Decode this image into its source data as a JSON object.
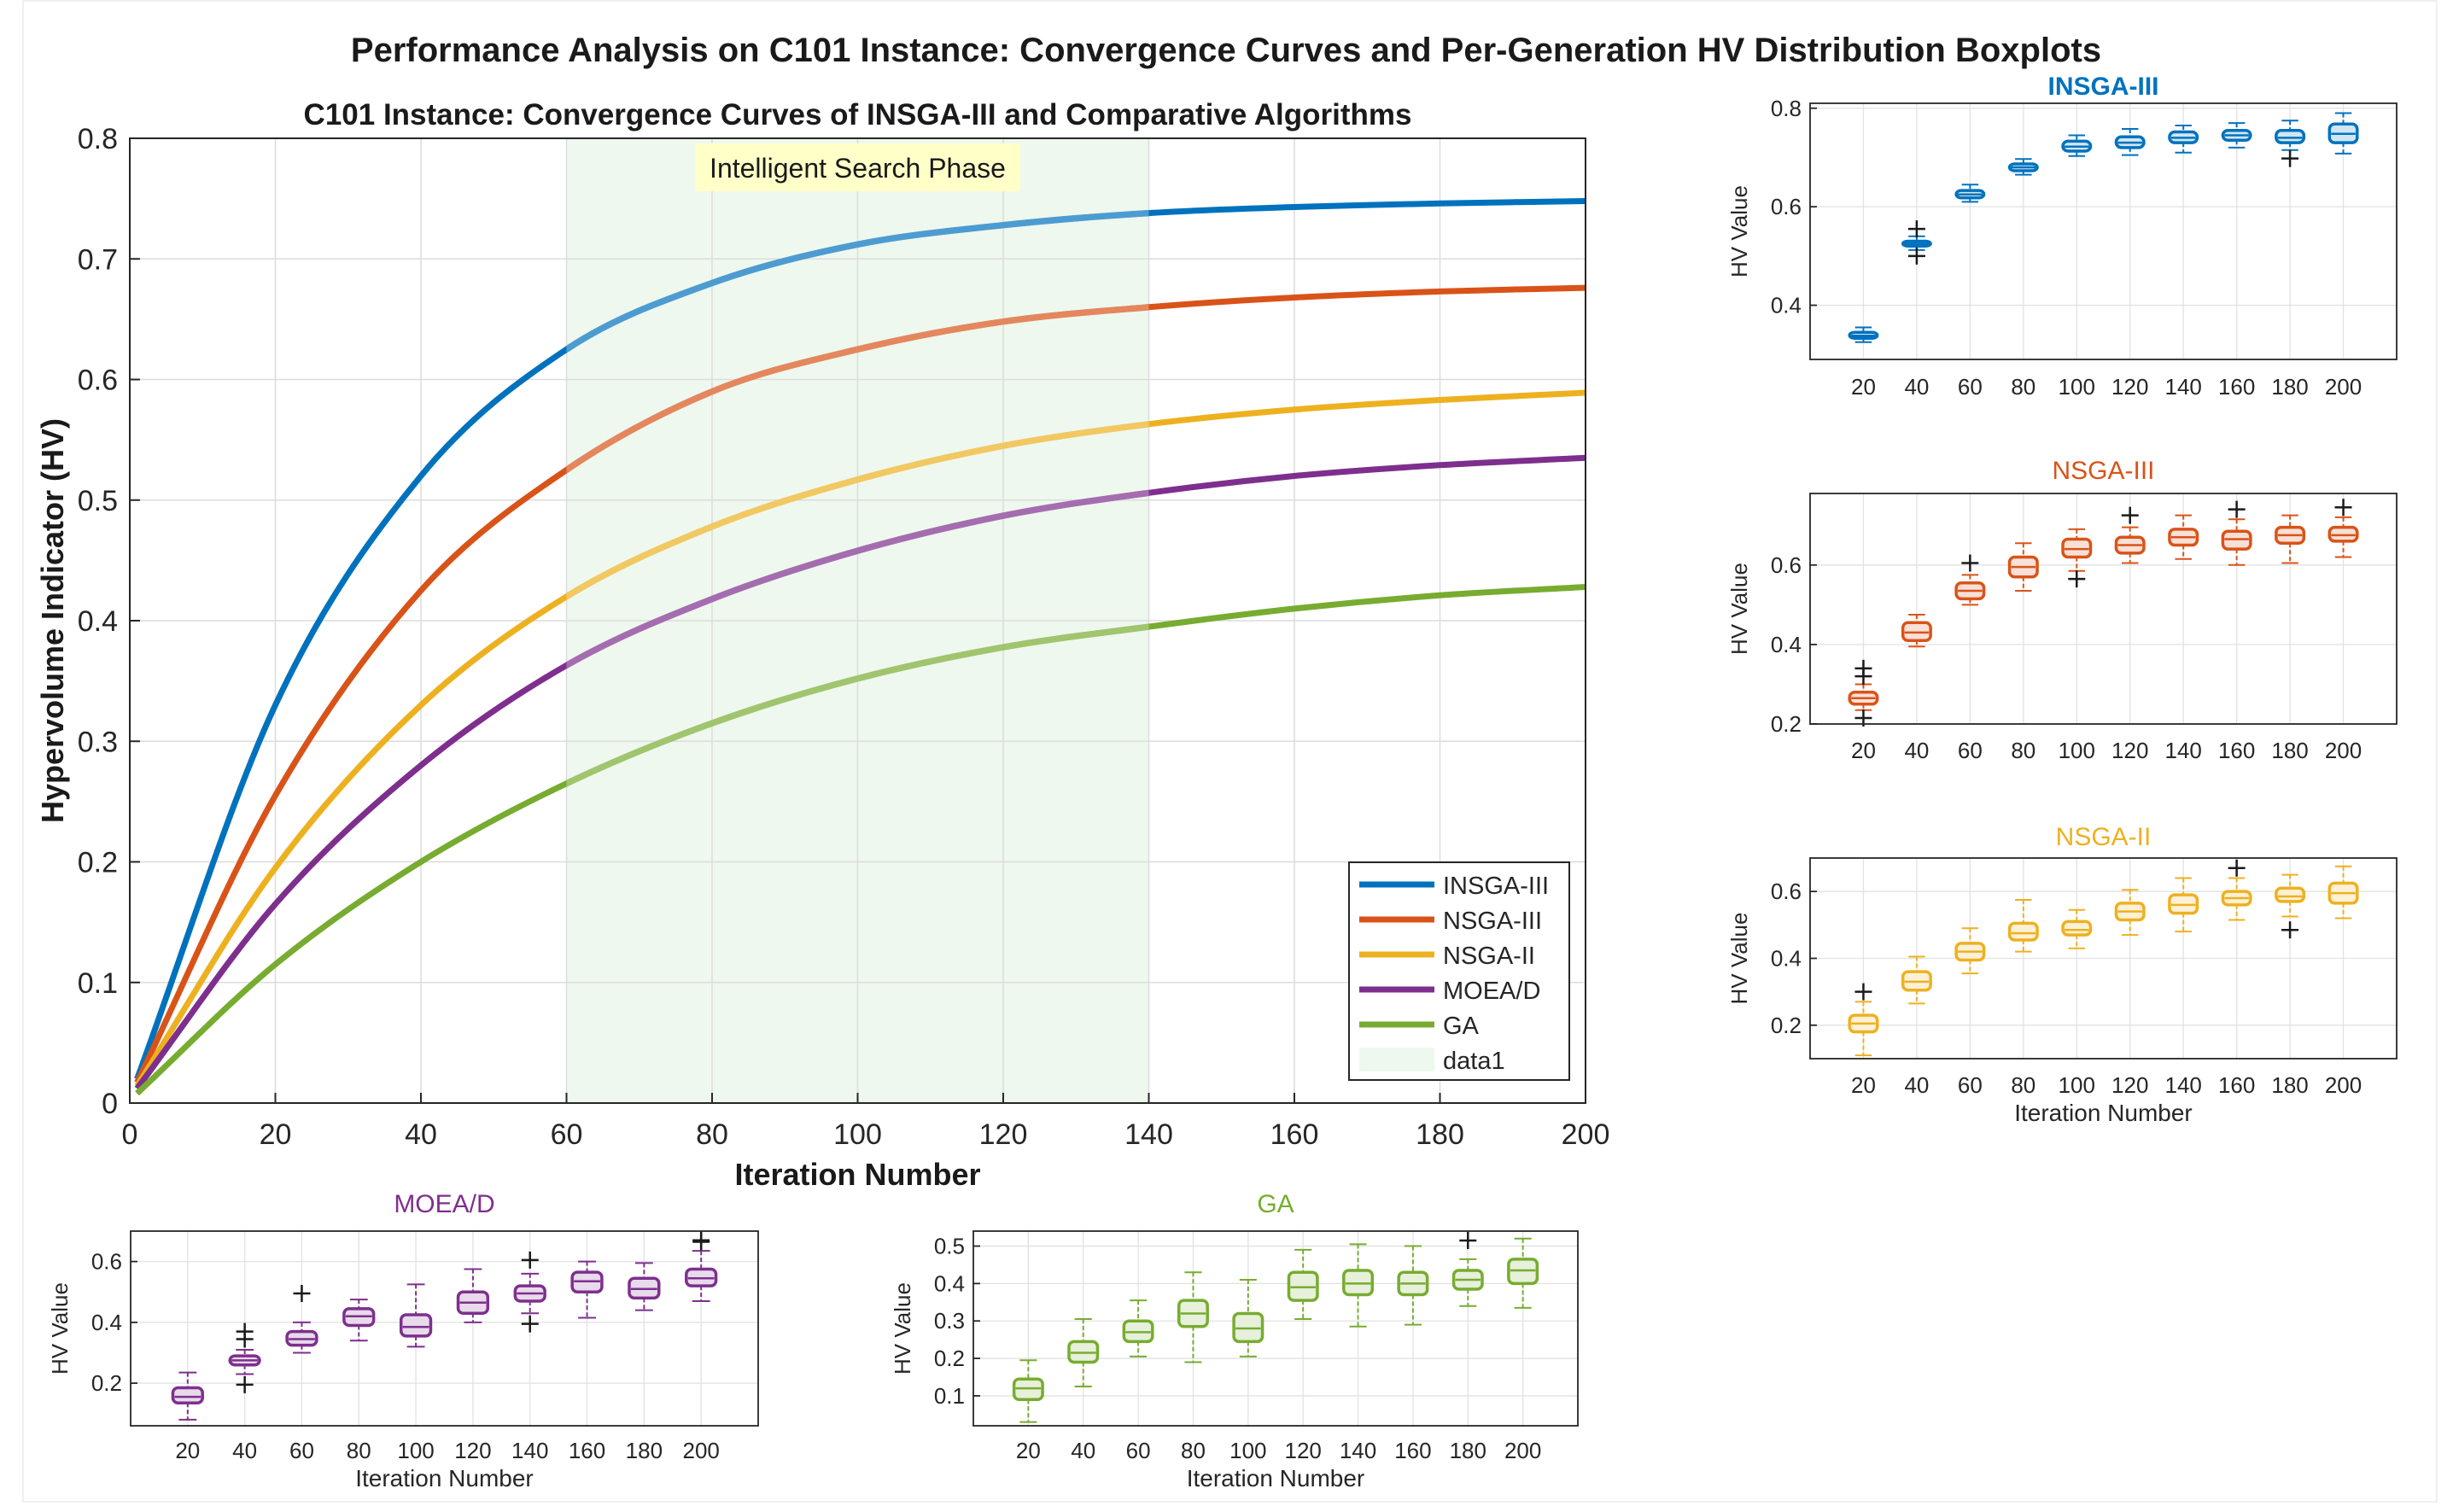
{
  "figure_title": "Performance Analysis on C101 Instance: Convergence Curves and Per-Generation HV Distribution Boxplots",
  "colors": {
    "insga3": "#0072BD",
    "nsga3": "#D95319",
    "nsga2": "#EDB120",
    "moead": "#7E2F8E",
    "ga": "#77AC30",
    "phase_fill": "#EEF8EE",
    "annotation_bg": "#FFFFC8"
  },
  "chart_data": [
    {
      "id": "main",
      "type": "line",
      "title": "C101 Instance: Convergence Curves of INSGA-III and Comparative Algorithms",
      "xlabel": "Iteration Number",
      "ylabel": "Hypervolume Indicator (HV)",
      "xlim": [
        0,
        200
      ],
      "ylim": [
        0,
        0.8
      ],
      "xticks": [
        0,
        20,
        40,
        60,
        80,
        100,
        120,
        140,
        160,
        180,
        200
      ],
      "yticks": [
        0,
        0.1,
        0.2,
        0.3,
        0.4,
        0.5,
        0.6,
        0.7,
        0.8
      ],
      "grid": true,
      "legend_location": "bottom-right",
      "shaded_region": {
        "x_start": 60,
        "x_end": 140,
        "label": "Intelligent Search Phase",
        "legend_name": "data1"
      },
      "series": [
        {
          "name": "INSGA-III",
          "color_key": "insga3",
          "x": [
            1,
            20,
            40,
            60,
            80,
            100,
            120,
            140,
            160,
            180,
            200
          ],
          "values": [
            0.02,
            0.33,
            0.52,
            0.625,
            0.68,
            0.712,
            0.728,
            0.738,
            0.743,
            0.746,
            0.748
          ]
        },
        {
          "name": "NSGA-III",
          "color_key": "nsga3",
          "x": [
            1,
            20,
            40,
            60,
            80,
            100,
            120,
            140,
            160,
            180,
            200
          ],
          "values": [
            0.017,
            0.255,
            0.425,
            0.525,
            0.59,
            0.625,
            0.648,
            0.66,
            0.668,
            0.673,
            0.676
          ]
        },
        {
          "name": "NSGA-II",
          "color_key": "nsga2",
          "x": [
            1,
            20,
            40,
            60,
            80,
            100,
            120,
            140,
            160,
            180,
            200
          ],
          "values": [
            0.014,
            0.195,
            0.33,
            0.42,
            0.478,
            0.517,
            0.545,
            0.563,
            0.575,
            0.583,
            0.589
          ]
        },
        {
          "name": "MOEA/D",
          "color_key": "moead",
          "x": [
            1,
            20,
            40,
            60,
            80,
            100,
            120,
            140,
            160,
            180,
            200
          ],
          "values": [
            0.012,
            0.165,
            0.28,
            0.363,
            0.418,
            0.458,
            0.487,
            0.506,
            0.52,
            0.529,
            0.535
          ]
        },
        {
          "name": "GA",
          "color_key": "ga",
          "x": [
            1,
            20,
            40,
            60,
            80,
            100,
            120,
            140,
            160,
            180,
            200
          ],
          "values": [
            0.008,
            0.115,
            0.2,
            0.265,
            0.315,
            0.352,
            0.378,
            0.395,
            0.41,
            0.421,
            0.428
          ]
        }
      ]
    },
    {
      "id": "insga3",
      "type": "boxplot",
      "title": "INSGA-III",
      "color_key": "insga3",
      "xlabel": "",
      "ylabel": "HV Value",
      "categories": [
        "20",
        "40",
        "60",
        "80",
        "100",
        "120",
        "140",
        "160",
        "180",
        "200"
      ],
      "ylim": [
        0.29,
        0.81
      ],
      "yticks": [
        0.4,
        0.6,
        0.8
      ],
      "ytick_labels": [
        "0.4",
        "0.6",
        "0.8"
      ],
      "boxes": [
        {
          "min": 0.325,
          "q1": 0.333,
          "median": 0.338,
          "q3": 0.345,
          "max": 0.355,
          "outliers": []
        },
        {
          "min": 0.512,
          "q1": 0.52,
          "median": 0.525,
          "q3": 0.53,
          "max": 0.54,
          "outliers": [
            0.5,
            0.555
          ]
        },
        {
          "min": 0.61,
          "q1": 0.618,
          "median": 0.625,
          "q3": 0.633,
          "max": 0.645,
          "outliers": []
        },
        {
          "min": 0.665,
          "q1": 0.673,
          "median": 0.68,
          "q3": 0.687,
          "max": 0.697,
          "outliers": []
        },
        {
          "min": 0.703,
          "q1": 0.713,
          "median": 0.722,
          "q3": 0.733,
          "max": 0.745,
          "outliers": []
        },
        {
          "min": 0.705,
          "q1": 0.72,
          "median": 0.73,
          "q3": 0.742,
          "max": 0.758,
          "outliers": []
        },
        {
          "min": 0.71,
          "q1": 0.73,
          "median": 0.74,
          "q3": 0.752,
          "max": 0.765,
          "outliers": []
        },
        {
          "min": 0.72,
          "q1": 0.735,
          "median": 0.745,
          "q3": 0.755,
          "max": 0.77,
          "outliers": []
        },
        {
          "min": 0.715,
          "q1": 0.73,
          "median": 0.74,
          "q3": 0.755,
          "max": 0.775,
          "outliers": [
            0.698
          ]
        },
        {
          "min": 0.708,
          "q1": 0.73,
          "median": 0.748,
          "q3": 0.768,
          "max": 0.79,
          "outliers": []
        }
      ]
    },
    {
      "id": "nsga3",
      "type": "boxplot",
      "title": "NSGA-III",
      "color_key": "nsga3",
      "xlabel": "",
      "ylabel": "HV Value",
      "categories": [
        "20",
        "40",
        "60",
        "80",
        "100",
        "120",
        "140",
        "160",
        "180",
        "200"
      ],
      "ylim": [
        0.2,
        0.78
      ],
      "yticks": [
        0.2,
        0.4,
        0.6
      ],
      "ytick_labels": [
        "0.2",
        "0.4",
        "0.6"
      ],
      "boxes": [
        {
          "min": 0.235,
          "q1": 0.25,
          "median": 0.265,
          "q3": 0.28,
          "max": 0.3,
          "outliers": [
            0.215,
            0.32,
            0.34
          ]
        },
        {
          "min": 0.395,
          "q1": 0.41,
          "median": 0.43,
          "q3": 0.455,
          "max": 0.475,
          "outliers": []
        },
        {
          "min": 0.5,
          "q1": 0.515,
          "median": 0.535,
          "q3": 0.555,
          "max": 0.575,
          "outliers": [
            0.605
          ]
        },
        {
          "min": 0.535,
          "q1": 0.57,
          "median": 0.595,
          "q3": 0.62,
          "max": 0.655,
          "outliers": []
        },
        {
          "min": 0.585,
          "q1": 0.62,
          "median": 0.64,
          "q3": 0.665,
          "max": 0.69,
          "outliers": [
            0.565
          ]
        },
        {
          "min": 0.605,
          "q1": 0.63,
          "median": 0.65,
          "q3": 0.67,
          "max": 0.695,
          "outliers": [
            0.725
          ]
        },
        {
          "min": 0.615,
          "q1": 0.65,
          "median": 0.67,
          "q3": 0.69,
          "max": 0.725,
          "outliers": []
        },
        {
          "min": 0.6,
          "q1": 0.64,
          "median": 0.665,
          "q3": 0.685,
          "max": 0.715,
          "outliers": [
            0.74
          ]
        },
        {
          "min": 0.605,
          "q1": 0.655,
          "median": 0.675,
          "q3": 0.695,
          "max": 0.725,
          "outliers": []
        },
        {
          "min": 0.62,
          "q1": 0.66,
          "median": 0.675,
          "q3": 0.695,
          "max": 0.72,
          "outliers": [
            0.745
          ]
        }
      ]
    },
    {
      "id": "nsga2",
      "type": "boxplot",
      "title": "NSGA-II",
      "color_key": "nsga2",
      "xlabel": "Iteration Number",
      "ylabel": "HV Value",
      "categories": [
        "20",
        "40",
        "60",
        "80",
        "100",
        "120",
        "140",
        "160",
        "180",
        "200"
      ],
      "ylim": [
        0.1,
        0.7
      ],
      "yticks": [
        0.2,
        0.4,
        0.6
      ],
      "ytick_labels": [
        "0.2",
        "0.4",
        "0.6"
      ],
      "boxes": [
        {
          "min": 0.11,
          "q1": 0.18,
          "median": 0.205,
          "q3": 0.23,
          "max": 0.27,
          "outliers": [
            0.3
          ]
        },
        {
          "min": 0.265,
          "q1": 0.305,
          "median": 0.33,
          "q3": 0.36,
          "max": 0.405,
          "outliers": []
        },
        {
          "min": 0.355,
          "q1": 0.395,
          "median": 0.42,
          "q3": 0.445,
          "max": 0.49,
          "outliers": []
        },
        {
          "min": 0.42,
          "q1": 0.455,
          "median": 0.475,
          "q3": 0.505,
          "max": 0.575,
          "outliers": []
        },
        {
          "min": 0.43,
          "q1": 0.47,
          "median": 0.485,
          "q3": 0.51,
          "max": 0.545,
          "outliers": []
        },
        {
          "min": 0.47,
          "q1": 0.515,
          "median": 0.54,
          "q3": 0.565,
          "max": 0.605,
          "outliers": []
        },
        {
          "min": 0.48,
          "q1": 0.535,
          "median": 0.56,
          "q3": 0.59,
          "max": 0.64,
          "outliers": []
        },
        {
          "min": 0.515,
          "q1": 0.56,
          "median": 0.58,
          "q3": 0.6,
          "max": 0.64,
          "outliers": [
            0.67
          ]
        },
        {
          "min": 0.525,
          "q1": 0.57,
          "median": 0.585,
          "q3": 0.61,
          "max": 0.65,
          "outliers": [
            0.485
          ]
        },
        {
          "min": 0.52,
          "q1": 0.565,
          "median": 0.595,
          "q3": 0.625,
          "max": 0.675,
          "outliers": []
        }
      ]
    },
    {
      "id": "moead",
      "type": "boxplot",
      "title": "MOEA/D",
      "color_key": "moead",
      "xlabel": "Iteration Number",
      "ylabel": "HV Value",
      "categories": [
        "20",
        "40",
        "60",
        "80",
        "100",
        "120",
        "140",
        "160",
        "180",
        "200"
      ],
      "ylim": [
        0.06,
        0.7
      ],
      "yticks": [
        0.2,
        0.4,
        0.6
      ],
      "ytick_labels": [
        "0.2",
        "0.4",
        "0.6"
      ],
      "boxes": [
        {
          "min": 0.08,
          "q1": 0.135,
          "median": 0.155,
          "q3": 0.185,
          "max": 0.235,
          "outliers": []
        },
        {
          "min": 0.23,
          "q1": 0.26,
          "median": 0.275,
          "q3": 0.29,
          "max": 0.31,
          "outliers": [
            0.195,
            0.345,
            0.37
          ]
        },
        {
          "min": 0.3,
          "q1": 0.325,
          "median": 0.345,
          "q3": 0.37,
          "max": 0.4,
          "outliers": [
            0.495
          ]
        },
        {
          "min": 0.34,
          "q1": 0.39,
          "median": 0.42,
          "q3": 0.445,
          "max": 0.475,
          "outliers": []
        },
        {
          "min": 0.32,
          "q1": 0.355,
          "median": 0.385,
          "q3": 0.425,
          "max": 0.525,
          "outliers": []
        },
        {
          "min": 0.4,
          "q1": 0.43,
          "median": 0.465,
          "q3": 0.5,
          "max": 0.575,
          "outliers": []
        },
        {
          "min": 0.43,
          "q1": 0.47,
          "median": 0.495,
          "q3": 0.52,
          "max": 0.56,
          "outliers": [
            0.395,
            0.605
          ]
        },
        {
          "min": 0.415,
          "q1": 0.5,
          "median": 0.535,
          "q3": 0.565,
          "max": 0.6,
          "outliers": []
        },
        {
          "min": 0.44,
          "q1": 0.48,
          "median": 0.51,
          "q3": 0.545,
          "max": 0.595,
          "outliers": []
        },
        {
          "min": 0.47,
          "q1": 0.52,
          "median": 0.545,
          "q3": 0.575,
          "max": 0.635,
          "outliers": [
            0.665,
            0.67
          ]
        }
      ]
    },
    {
      "id": "ga",
      "type": "boxplot",
      "title": "GA",
      "color_key": "ga",
      "xlabel": "Iteration Number",
      "ylabel": "HV Value",
      "categories": [
        "20",
        "40",
        "60",
        "80",
        "100",
        "120",
        "140",
        "160",
        "180",
        "200"
      ],
      "ylim": [
        0.02,
        0.54
      ],
      "yticks": [
        0.1,
        0.2,
        0.3,
        0.4,
        0.5
      ],
      "ytick_labels": [
        "0.1",
        "0.2",
        "0.3",
        "0.4",
        "0.5"
      ],
      "boxes": [
        {
          "min": 0.03,
          "q1": 0.09,
          "median": 0.12,
          "q3": 0.145,
          "max": 0.195,
          "outliers": []
        },
        {
          "min": 0.125,
          "q1": 0.19,
          "median": 0.215,
          "q3": 0.245,
          "max": 0.305,
          "outliers": []
        },
        {
          "min": 0.205,
          "q1": 0.245,
          "median": 0.27,
          "q3": 0.3,
          "max": 0.355,
          "outliers": []
        },
        {
          "min": 0.19,
          "q1": 0.285,
          "median": 0.32,
          "q3": 0.355,
          "max": 0.43,
          "outliers": []
        },
        {
          "min": 0.205,
          "q1": 0.245,
          "median": 0.28,
          "q3": 0.32,
          "max": 0.41,
          "outliers": []
        },
        {
          "min": 0.305,
          "q1": 0.355,
          "median": 0.39,
          "q3": 0.43,
          "max": 0.49,
          "outliers": []
        },
        {
          "min": 0.285,
          "q1": 0.37,
          "median": 0.4,
          "q3": 0.435,
          "max": 0.505,
          "outliers": []
        },
        {
          "min": 0.29,
          "q1": 0.37,
          "median": 0.4,
          "q3": 0.43,
          "max": 0.5,
          "outliers": []
        },
        {
          "min": 0.34,
          "q1": 0.385,
          "median": 0.41,
          "q3": 0.435,
          "max": 0.465,
          "outliers": [
            0.515
          ]
        },
        {
          "min": 0.335,
          "q1": 0.4,
          "median": 0.435,
          "q3": 0.465,
          "max": 0.52,
          "outliers": []
        }
      ]
    }
  ]
}
